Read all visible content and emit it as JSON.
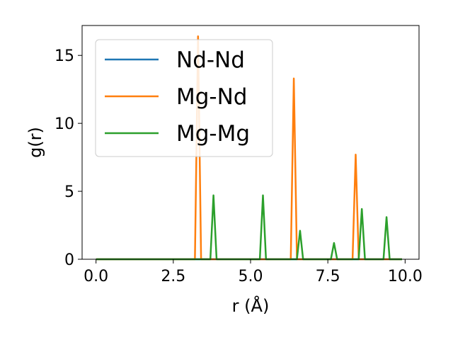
{
  "chart_data": {
    "type": "line",
    "xlabel": "r (Å)",
    "ylabel": "g(r)",
    "xlim": [
      -0.45,
      10.45
    ],
    "ylim": [
      0,
      17.2
    ],
    "xticks": [
      0,
      2.5,
      5,
      7.5,
      10
    ],
    "xtick_labels": [
      "0.0",
      "2.5",
      "5.0",
      "7.5",
      "10.0"
    ],
    "yticks": [
      0,
      5,
      10,
      15
    ],
    "ytick_labels": [
      "0",
      "5",
      "10",
      "15"
    ],
    "grid": false,
    "legend_position": "top-left",
    "series": [
      {
        "name": "Nd-Nd",
        "color": "#1f77b4",
        "x": [
          0,
          9.9
        ],
        "y": [
          0,
          0
        ]
      },
      {
        "name": "Mg-Nd",
        "color": "#ff7f0e",
        "x": [
          0,
          3.2,
          3.3,
          3.4,
          6.3,
          6.4,
          6.5,
          8.3,
          8.4,
          8.5,
          9.9
        ],
        "y": [
          0,
          0,
          16.4,
          0,
          0,
          13.3,
          0,
          0,
          7.7,
          0,
          0
        ]
      },
      {
        "name": "Mg-Mg",
        "color": "#2ca02c",
        "x": [
          0,
          3.7,
          3.8,
          3.9,
          5.3,
          5.4,
          5.5,
          6.5,
          6.6,
          6.7,
          7.6,
          7.7,
          7.8,
          8.5,
          8.6,
          8.7,
          9.3,
          9.4,
          9.5,
          9.9
        ],
        "y": [
          0,
          0,
          4.7,
          0,
          0,
          4.7,
          0,
          0,
          2.1,
          0,
          0,
          1.2,
          0,
          0,
          3.7,
          0,
          0,
          3.1,
          0,
          0
        ]
      }
    ]
  }
}
